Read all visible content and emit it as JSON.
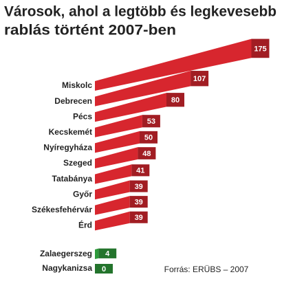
{
  "chart_data": {
    "type": "bar",
    "title_lines": [
      "Városok, ahol a legtöbb és legkevesebb",
      "rablás történt 2007-ben"
    ],
    "categories": [
      "Miskolc",
      "Debrecen",
      "Pécs",
      "Kecskemét",
      "Nyíregyháza",
      "Szeged",
      "Tatabánya",
      "Győr",
      "Székesfehérvár",
      "Érd",
      "Zalaegerszeg",
      "Nagykanizsa"
    ],
    "values": [
      175,
      107,
      80,
      53,
      50,
      48,
      41,
      39,
      39,
      39,
      4,
      0
    ],
    "colors": [
      "#d7262e",
      "#d7262e",
      "#d7262e",
      "#d7262e",
      "#d7262e",
      "#d7262e",
      "#d7262e",
      "#d7262e",
      "#d7262e",
      "#d7262e",
      "#2e9a3b",
      "#2e9a3b"
    ],
    "source": "Forrás: ERÜBS – 2007"
  }
}
